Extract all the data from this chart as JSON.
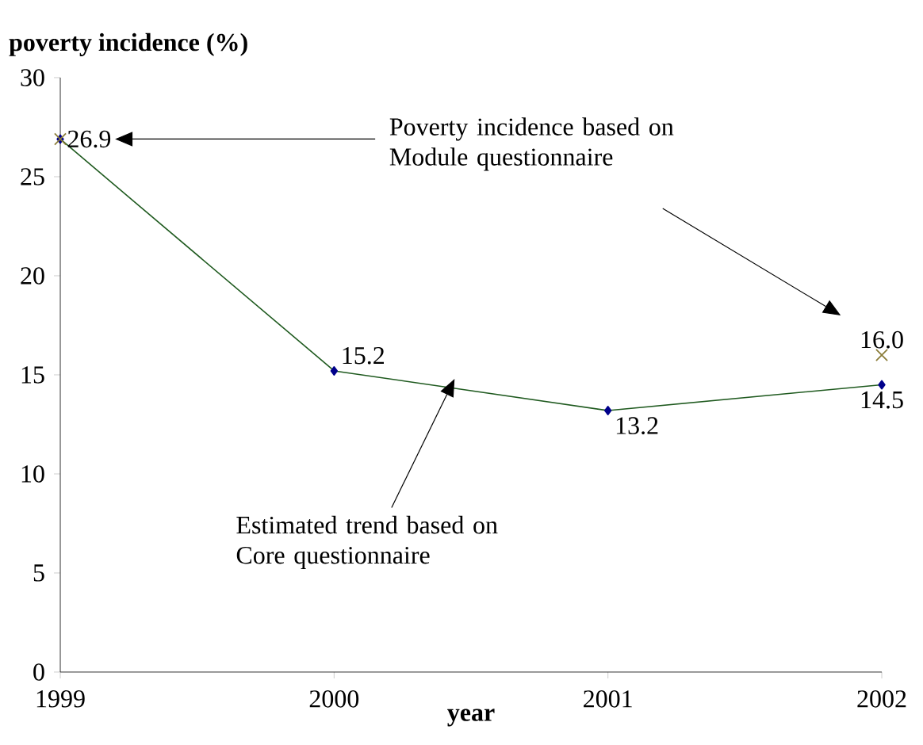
{
  "chart_data": {
    "type": "line",
    "xlabel": "year",
    "ylabel": "poverty incidence (%)",
    "x": [
      1999,
      2000,
      2001,
      2002
    ],
    "series": [
      {
        "name": null,
        "color": "#1f5a1f",
        "marker": "diamond",
        "values": [
          26.9,
          15.2,
          13.2,
          14.5
        ],
        "value_labels": [
          "26.9",
          "15.2",
          "13.2",
          "14.5"
        ]
      },
      {
        "name": null,
        "type": "scatter",
        "color": "#8b7d3a",
        "marker": "cross",
        "x": [
          1999,
          2002
        ],
        "values": [
          26.9,
          16.0
        ],
        "value_labels": [
          null,
          "16.0"
        ]
      }
    ],
    "annotations": [
      "Poverty incidence based on Module questionnaire",
      "Estimated trend based on Core questionnaire"
    ],
    "xlim": [
      1999,
      2002
    ],
    "ylim": [
      0,
      30
    ],
    "xticks": [
      1999,
      2000,
      2001,
      2002
    ],
    "yticks": [
      0,
      5,
      10,
      15,
      20,
      25,
      30
    ],
    "grid": false
  }
}
